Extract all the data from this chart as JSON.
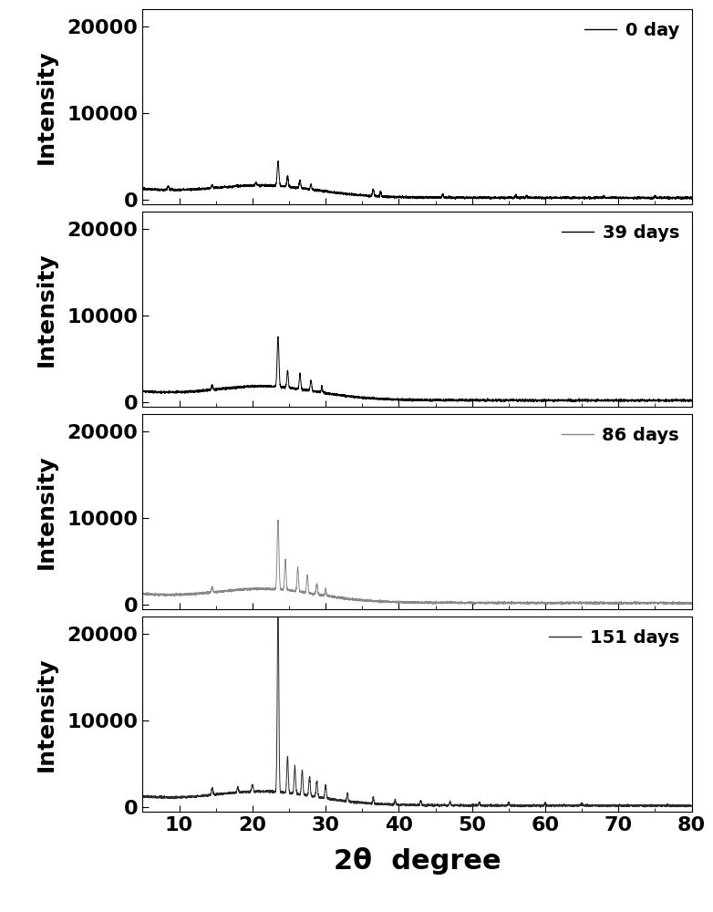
{
  "panels": [
    {
      "label": "0 day",
      "color": "#000000",
      "line_width": 0.7
    },
    {
      "label": "39 days",
      "color": "#000000",
      "line_width": 0.7
    },
    {
      "label": "86 days",
      "color": "#888888",
      "line_width": 0.7
    },
    {
      "label": "151 days",
      "color": "#2a2a2a",
      "line_width": 0.7
    }
  ],
  "xlim": [
    5,
    80
  ],
  "ylim": [
    -500,
    22000
  ],
  "xticks": [
    10,
    20,
    30,
    40,
    50,
    60,
    70,
    80
  ],
  "yticks": [
    0,
    10000,
    20000
  ],
  "xlabel": "2θ  degree",
  "ylabel": "Intensity",
  "background_color": "#ffffff",
  "axis_fontsize": 18,
  "xlabel_fontsize": 22,
  "legend_fontsize": 14,
  "tick_fontsize": 16,
  "ylabel_fontsize": 18
}
